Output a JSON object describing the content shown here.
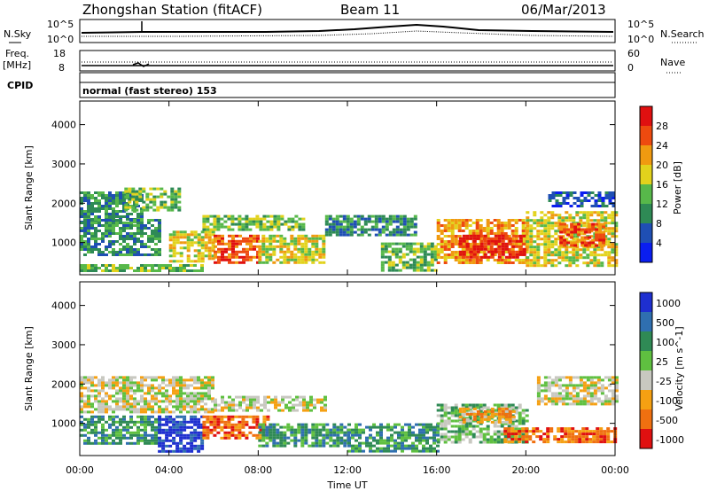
{
  "title": {
    "station": "Zhongshan Station (fitACF)",
    "beam": "Beam 11",
    "date": "06/Mar/2013"
  },
  "noise_panel": {
    "left_label": "N.Sky",
    "right_label": "N.Search",
    "left_ticks": [
      "10^5",
      "10^0"
    ],
    "right_ticks": [
      "10^5",
      "10^0"
    ]
  },
  "freq_panel": {
    "left_label_1": "Freq.",
    "left_label_2": "[MHz]",
    "left_ticks": [
      "18",
      "8"
    ],
    "right_label": "Nave",
    "right_ticks": [
      "60",
      "0"
    ]
  },
  "cpid": {
    "label": "CPID",
    "text": "normal (fast stereo) 153"
  },
  "x_axis": {
    "label": "Time UT",
    "ticks": [
      "00:00",
      "04:00",
      "08:00",
      "12:00",
      "16:00",
      "20:00",
      "00:00"
    ]
  },
  "chart_data": [
    {
      "type": "heatmap",
      "name": "power",
      "ylabel": "Slant Range [km]",
      "yticks": [
        1000,
        2000,
        3000,
        4000
      ],
      "ylim": [
        180,
        4600
      ],
      "xlim_hours": [
        0,
        24
      ],
      "colorbar": {
        "label": "Power [dB]",
        "ticks": [
          "4",
          "8",
          "12",
          "16",
          "20",
          "24",
          "28"
        ],
        "colors": [
          "#0a1ef0",
          "#1f4fb4",
          "#2e8a55",
          "#57b84a",
          "#e2d21c",
          "#f09a10",
          "#ee4a0f",
          "#e01010"
        ],
        "range": [
          0,
          32
        ]
      },
      "regions": [
        {
          "t0": 0.0,
          "t1": 2.8,
          "r0": 1500,
          "r1": 2300,
          "level": 2
        },
        {
          "t0": 0.0,
          "t1": 3.5,
          "r0": 700,
          "r1": 1600,
          "level": 2
        },
        {
          "t0": 0.0,
          "t1": 5.5,
          "r0": 250,
          "r1": 450,
          "level": 3
        },
        {
          "t0": 2.0,
          "t1": 4.5,
          "r0": 1800,
          "r1": 2400,
          "level": 3
        },
        {
          "t0": 4.0,
          "t1": 6.0,
          "r0": 500,
          "r1": 1300,
          "level": 4
        },
        {
          "t0": 5.5,
          "t1": 10.0,
          "r0": 1300,
          "r1": 1700,
          "level": 3
        },
        {
          "t0": 6.0,
          "t1": 8.0,
          "r0": 500,
          "r1": 1200,
          "level": 6
        },
        {
          "t0": 8.0,
          "t1": 11.0,
          "r0": 500,
          "r1": 1200,
          "level": 4
        },
        {
          "t0": 11.0,
          "t1": 15.0,
          "r0": 1200,
          "r1": 1700,
          "level": 2
        },
        {
          "t0": 13.5,
          "t1": 16.0,
          "r0": 300,
          "r1": 1000,
          "level": 3
        },
        {
          "t0": 16.0,
          "t1": 20.0,
          "r0": 500,
          "r1": 1600,
          "level": 5
        },
        {
          "t0": 17.0,
          "t1": 20.0,
          "r0": 600,
          "r1": 1200,
          "level": 7
        },
        {
          "t0": 20.0,
          "t1": 24.0,
          "r0": 400,
          "r1": 1800,
          "level": 4
        },
        {
          "t0": 21.5,
          "t1": 23.5,
          "r0": 900,
          "r1": 1500,
          "level": 6
        },
        {
          "t0": 21.0,
          "t1": 24.0,
          "r0": 1900,
          "r1": 2300,
          "level": 1
        }
      ]
    },
    {
      "type": "heatmap",
      "name": "velocity",
      "ylabel": "Slant Range [km]",
      "yticks": [
        1000,
        2000,
        3000,
        4000
      ],
      "ylim": [
        180,
        4600
      ],
      "xlim_hours": [
        0,
        24
      ],
      "colorbar": {
        "label": "Velocity [m s^-1]",
        "ticks": [
          "1000",
          "500",
          "100",
          "25",
          "-25",
          "-100",
          "-500",
          "-1000"
        ],
        "colors": [
          "#1e2fd0",
          "#2f6fb0",
          "#2f8a55",
          "#5fc040",
          "#c8c8c0",
          "#f5a012",
          "#f07010",
          "#e01010"
        ],
        "range": [
          -1000,
          1000
        ]
      },
      "regions": [
        {
          "t0": 0.0,
          "t1": 6.0,
          "r0": 1300,
          "r1": 2200,
          "level": 4
        },
        {
          "t0": 6.0,
          "t1": 11.0,
          "r0": 1300,
          "r1": 1700,
          "level": 4
        },
        {
          "t0": 0.0,
          "t1": 3.5,
          "r0": 500,
          "r1": 1200,
          "level": 2
        },
        {
          "t0": 3.5,
          "t1": 5.5,
          "r0": 300,
          "r1": 1200,
          "level": 0
        },
        {
          "t0": 5.5,
          "t1": 8.5,
          "r0": 600,
          "r1": 1200,
          "level": 6
        },
        {
          "t0": 8.0,
          "t1": 12.0,
          "r0": 400,
          "r1": 1000,
          "level": 2
        },
        {
          "t0": 12.0,
          "t1": 16.0,
          "r0": 300,
          "r1": 1000,
          "level": 2
        },
        {
          "t0": 16.0,
          "t1": 20.0,
          "r0": 500,
          "r1": 1500,
          "level": 3
        },
        {
          "t0": 17.0,
          "t1": 19.5,
          "r0": 1000,
          "r1": 1400,
          "level": 5
        },
        {
          "t0": 19.0,
          "t1": 24.0,
          "r0": 500,
          "r1": 900,
          "level": 6
        },
        {
          "t0": 20.5,
          "t1": 24.0,
          "r0": 1500,
          "r1": 2200,
          "level": 4
        }
      ]
    }
  ]
}
